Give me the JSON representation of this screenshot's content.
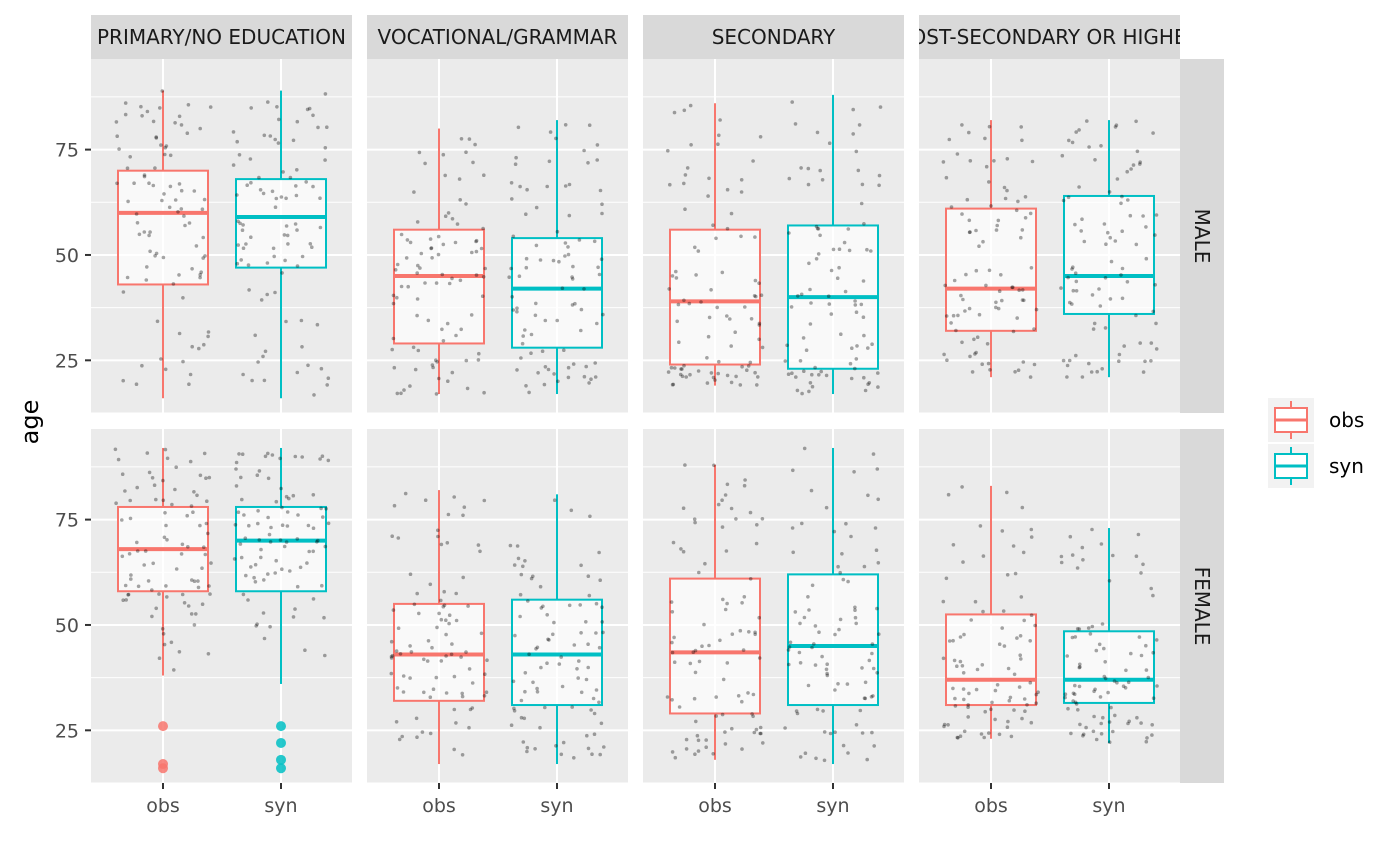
{
  "chart_data": {
    "type": "box",
    "ylabel": "age",
    "xlabel": "",
    "ylim": [
      12.5,
      96.5
    ],
    "yticks": [
      25,
      50,
      75
    ],
    "categories": [
      "obs",
      "syn"
    ],
    "facet_cols": [
      "PRIMARY/NO EDUCATION",
      "VOCATIONAL/GRAMMAR",
      "SECONDARY",
      "POST-SECONDARY OR HIGHER"
    ],
    "facet_rows": [
      "MALE",
      "FEMALE"
    ],
    "legend": {
      "position": "right",
      "entries": [
        {
          "label": "obs",
          "color": "#F8766D"
        },
        {
          "label": "syn",
          "color": "#00BFC4"
        }
      ]
    },
    "panels": [
      {
        "col": "PRIMARY/NO EDUCATION",
        "row": "MALE",
        "boxes": [
          {
            "category": "obs",
            "min": 16,
            "q1": 43,
            "median": 60,
            "q3": 70,
            "max": 89,
            "outliers": []
          },
          {
            "category": "syn",
            "min": 16,
            "q1": 47,
            "median": 59,
            "q3": 68,
            "max": 89,
            "outliers": []
          }
        ]
      },
      {
        "col": "VOCATIONAL/GRAMMAR",
        "row": "MALE",
        "boxes": [
          {
            "category": "obs",
            "min": 17,
            "q1": 29,
            "median": 45,
            "q3": 56,
            "max": 80,
            "outliers": []
          },
          {
            "category": "syn",
            "min": 17,
            "q1": 28,
            "median": 42,
            "q3": 54,
            "max": 82,
            "outliers": []
          }
        ]
      },
      {
        "col": "SECONDARY",
        "row": "MALE",
        "boxes": [
          {
            "category": "obs",
            "min": 19,
            "q1": 24,
            "median": 39,
            "q3": 56,
            "max": 86,
            "outliers": []
          },
          {
            "category": "syn",
            "min": 17,
            "q1": 23,
            "median": 40,
            "q3": 57,
            "max": 88,
            "outliers": []
          }
        ]
      },
      {
        "col": "POST-SECONDARY OR HIGHER",
        "row": "MALE",
        "boxes": [
          {
            "category": "obs",
            "min": 21,
            "q1": 32,
            "median": 42,
            "q3": 61,
            "max": 82,
            "outliers": []
          },
          {
            "category": "syn",
            "min": 21,
            "q1": 36,
            "median": 45,
            "q3": 64,
            "max": 82,
            "outliers": []
          }
        ]
      },
      {
        "col": "PRIMARY/NO EDUCATION",
        "row": "FEMALE",
        "boxes": [
          {
            "category": "obs",
            "min": 38,
            "q1": 58,
            "median": 68,
            "q3": 78,
            "max": 92,
            "outliers": [
              26,
              17,
              16
            ]
          },
          {
            "category": "syn",
            "min": 36,
            "q1": 58,
            "median": 70,
            "q3": 78,
            "max": 92,
            "outliers": [
              26,
              22,
              18,
              16
            ]
          }
        ]
      },
      {
        "col": "VOCATIONAL/GRAMMAR",
        "row": "FEMALE",
        "boxes": [
          {
            "category": "obs",
            "min": 17,
            "q1": 32,
            "median": 43,
            "q3": 55,
            "max": 82,
            "outliers": []
          },
          {
            "category": "syn",
            "min": 17,
            "q1": 31,
            "median": 43,
            "q3": 56,
            "max": 81,
            "outliers": []
          }
        ]
      },
      {
        "col": "SECONDARY",
        "row": "FEMALE",
        "boxes": [
          {
            "category": "obs",
            "min": 18,
            "q1": 29,
            "median": 43.5,
            "q3": 61,
            "max": 88,
            "outliers": []
          },
          {
            "category": "syn",
            "min": 17,
            "q1": 31,
            "median": 45,
            "q3": 62,
            "max": 92,
            "outliers": []
          }
        ]
      },
      {
        "col": "POST-SECONDARY OR HIGHER",
        "row": "FEMALE",
        "boxes": [
          {
            "category": "obs",
            "min": 23,
            "q1": 31,
            "median": 37,
            "q3": 52.5,
            "max": 83,
            "outliers": []
          },
          {
            "category": "syn",
            "min": 22,
            "q1": 31.5,
            "median": 37,
            "q3": 48.5,
            "max": 73,
            "outliers": []
          }
        ]
      }
    ]
  }
}
